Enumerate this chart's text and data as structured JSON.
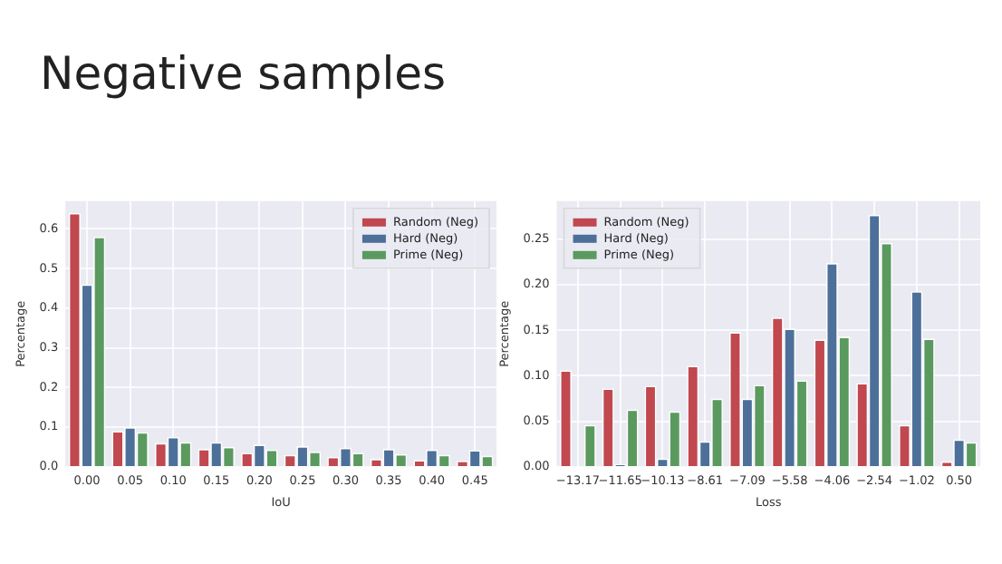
{
  "chart_data": [
    {
      "type": "bar",
      "title": "Negative samples",
      "xlabel": "IoU",
      "ylabel": "Percentage",
      "categories": [
        "0.00",
        "0.05",
        "0.10",
        "0.15",
        "0.20",
        "0.25",
        "0.30",
        "0.35",
        "0.40",
        "0.45"
      ],
      "series": [
        {
          "name": "Random (Neg)",
          "color": "#c0484e",
          "values": [
            0.64,
            0.09,
            0.06,
            0.045,
            0.035,
            0.03,
            0.025,
            0.02,
            0.017,
            0.015
          ]
        },
        {
          "name": "Hard (Neg)",
          "color": "#4c7099",
          "values": [
            0.46,
            0.1,
            0.075,
            0.062,
            0.056,
            0.052,
            0.048,
            0.045,
            0.043,
            0.042
          ]
        },
        {
          "name": "Prime (Neg)",
          "color": "#5a9a5e",
          "values": [
            0.58,
            0.087,
            0.062,
            0.05,
            0.043,
            0.038,
            0.035,
            0.032,
            0.03,
            0.028
          ]
        }
      ],
      "ylim": [
        0,
        0.67
      ],
      "yticks": [
        {
          "value": 0,
          "label": "0.0"
        },
        {
          "value": 0.1,
          "label": "0.1"
        },
        {
          "value": 0.2,
          "label": "0.2"
        },
        {
          "value": 0.3,
          "label": "0.3"
        },
        {
          "value": 0.4,
          "label": "0.4"
        },
        {
          "value": 0.5,
          "label": "0.5"
        },
        {
          "value": 0.6,
          "label": "0.6"
        }
      ],
      "grid": true,
      "legend": "top right"
    },
    {
      "type": "bar",
      "xlabel": "Loss",
      "ylabel": "Percentage",
      "categories": [
        "−13.17",
        "−11.65",
        "−10.13",
        "−8.61",
        "−7.09",
        "−5.58",
        "−4.06",
        "−2.54",
        "−1.02",
        "0.50"
      ],
      "series": [
        {
          "name": "Random (Neg)",
          "color": "#c0484e",
          "values": [
            0.106,
            0.086,
            0.089,
            0.111,
            0.148,
            0.164,
            0.14,
            0.092,
            0.046,
            0.006
          ]
        },
        {
          "name": "Hard (Neg)",
          "color": "#4c7099",
          "values": [
            0,
            0.003,
            0.009,
            0.028,
            0.075,
            0.152,
            0.224,
            0.277,
            0.193,
            0.03
          ]
        },
        {
          "name": "Prime (Neg)",
          "color": "#5a9a5e",
          "values": [
            0.046,
            0.063,
            0.061,
            0.075,
            0.09,
            0.095,
            0.143,
            0.246,
            0.141,
            0.027
          ]
        }
      ],
      "ylim": [
        0,
        0.292
      ],
      "yticks": [
        {
          "value": 0,
          "label": "0.00"
        },
        {
          "value": 0.05,
          "label": "0.05"
        },
        {
          "value": 0.1,
          "label": "0.10"
        },
        {
          "value": 0.15,
          "label": "0.15"
        },
        {
          "value": 0.2,
          "label": "0.20"
        },
        {
          "value": 0.25,
          "label": "0.25"
        }
      ],
      "grid": true,
      "legend": "top left"
    }
  ]
}
